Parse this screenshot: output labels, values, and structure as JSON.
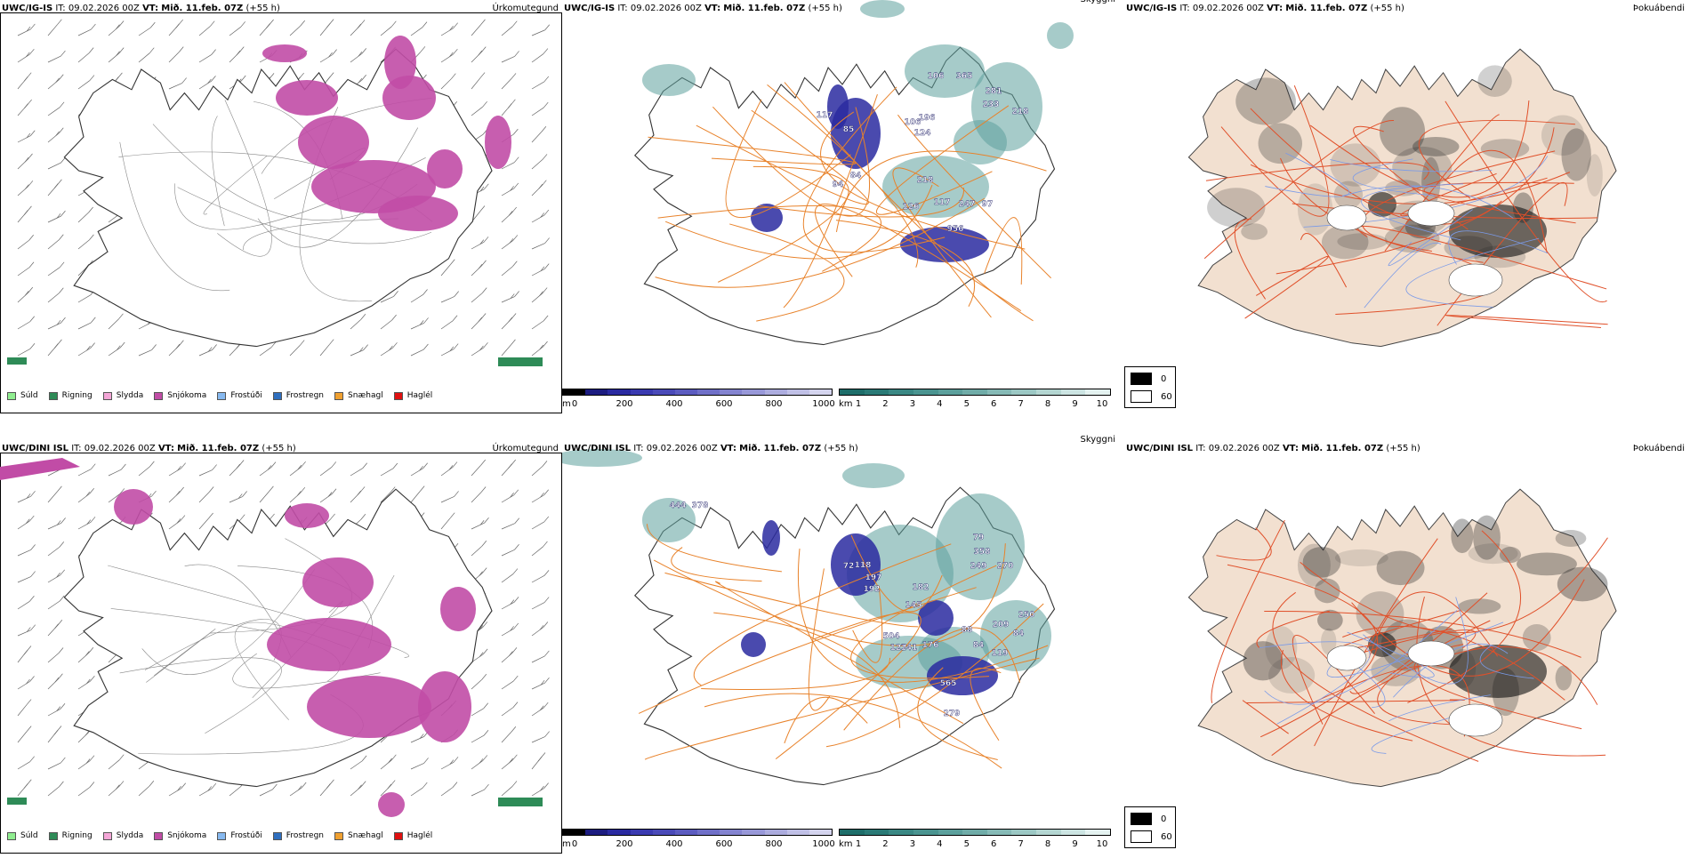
{
  "rows": [
    {
      "model": "UWC/IG-IS",
      "it_label": "IT:",
      "it_value": "09.02.2026 00Z",
      "vt_label": "VT:",
      "vt_value": "Mið. 11.feb. 07Z",
      "lead": "(+55 h)",
      "labels_vis": [
        [
          "106",
          "365"
        ],
        [
          "281",
          "218"
        ],
        [
          "233",
          "196"
        ],
        [
          "117",
          "85"
        ],
        [
          "106",
          "124"
        ],
        [
          "94",
          "84"
        ],
        [
          "218",
          "126"
        ],
        [
          "117",
          "247"
        ],
        [
          "97",
          "956"
        ]
      ]
    },
    {
      "model": "UWC/DINI ISL",
      "it_label": "IT:",
      "it_value": "09.02.2026 00Z",
      "vt_label": "VT:",
      "vt_value": "Mið. 11.feb. 07Z",
      "lead": "(+55 h)",
      "labels_vis": [
        [
          "444",
          "378"
        ],
        [
          "72",
          "118"
        ],
        [
          "197",
          "192"
        ],
        [
          "79",
          "358"
        ],
        [
          "249",
          "270"
        ],
        [
          "182",
          "145"
        ],
        [
          "88",
          "209"
        ],
        [
          "250",
          "84"
        ],
        [
          "504",
          "127"
        ],
        [
          "141",
          "176"
        ],
        [
          "84",
          "119"
        ],
        [
          "565",
          "279"
        ]
      ]
    }
  ],
  "panel_titles": {
    "precip": "Úrkomutegund",
    "vis": "Skyggni",
    "fog": "Þokuábendi"
  },
  "precip_legend": [
    {
      "label": "Súld",
      "color": "#90ee90"
    },
    {
      "label": "Rigning",
      "color": "#2e8b57"
    },
    {
      "label": "Slydda",
      "color": "#f4a6d7"
    },
    {
      "label": "Snjókoma",
      "color": "#c14ca6"
    },
    {
      "label": "Frostúði",
      "color": "#87b9f0"
    },
    {
      "label": "Frostregn",
      "color": "#2f6fbf"
    },
    {
      "label": "Snæhagl",
      "color": "#f0a030"
    },
    {
      "label": "Haglél",
      "color": "#e01010"
    }
  ],
  "height_bar": {
    "unit": "m",
    "ticks": [
      "0",
      "200",
      "400",
      "600",
      "800",
      "1000"
    ],
    "colors": [
      "#000000",
      "#1c1c80",
      "#2a2aa0",
      "#3a3ab0",
      "#4a4ab8",
      "#5c5cc0",
      "#7070c8",
      "#8484d0",
      "#9898d8",
      "#acacde",
      "#c0c0e6",
      "#d4d4ee"
    ]
  },
  "dist_bar": {
    "unit": "km",
    "ticks": [
      "1",
      "2",
      "3",
      "4",
      "5",
      "6",
      "7",
      "8",
      "9",
      "10"
    ],
    "colors": [
      "#1e6e6a",
      "#2a7a76",
      "#3a8884",
      "#4a9490",
      "#5ca09c",
      "#70aca8",
      "#86bab6",
      "#9cc8c4",
      "#b4d6d2",
      "#cce4e2",
      "#e4f2f0"
    ]
  },
  "fog_legend": {
    "high": "0",
    "low": "60"
  }
}
